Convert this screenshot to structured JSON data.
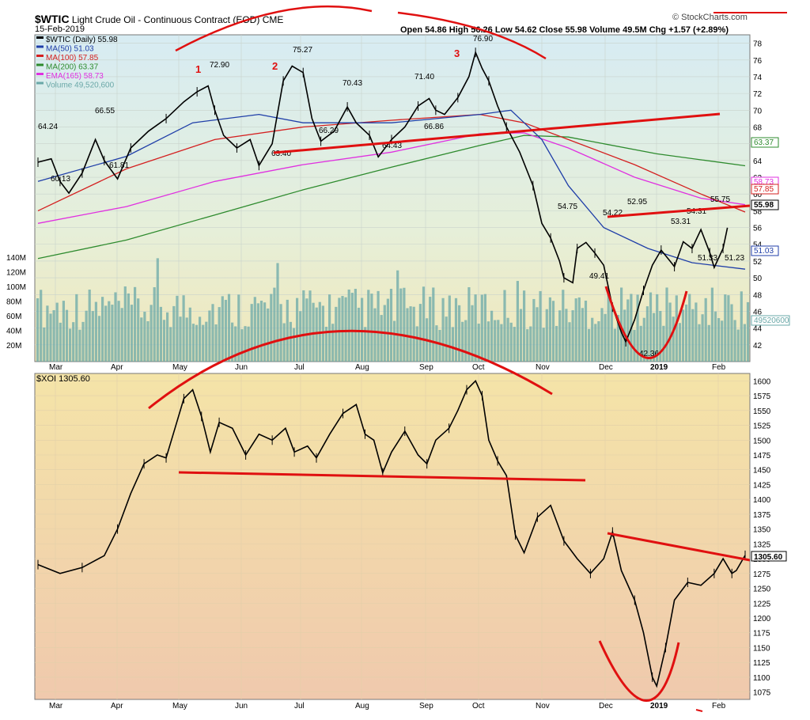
{
  "header": {
    "symbol": "$WTIC",
    "description": "Light Crude Oil - Continuous Contract (EOD)",
    "exchange": "CME",
    "date": "15-Feb-2019",
    "brand": "© StockCharts.com",
    "stats": {
      "open": "Open 54.86",
      "high": "High 56.26",
      "low": "Low 54.62",
      "close": "Close 55.98",
      "volume": "Volume 49.5M",
      "chg": "Chg +1.57 (+2.89%)"
    }
  },
  "colors": {
    "ma50": "#1f3ea8",
    "ma100": "#d42020",
    "ma200": "#2e8b2e",
    "ema165": "#e030e0",
    "volume": "#6aa8a8",
    "annotation": "#e01010",
    "candle": "#000000"
  },
  "chart_data": [
    {
      "type": "line",
      "title": "$WTIC (Daily) 55.98",
      "x_labels": [
        "Mar",
        "Apr",
        "May",
        "Jun",
        "Jul",
        "Aug",
        "Sep",
        "Oct",
        "Nov",
        "Dec",
        "2019",
        "Feb"
      ],
      "ylim": [
        40,
        79
      ],
      "y_ticks": [
        42,
        44,
        46,
        48,
        50,
        52,
        54,
        56,
        58,
        60,
        62,
        64,
        66,
        68,
        70,
        72,
        74,
        76,
        78
      ],
      "volume_ticks": [
        "140M",
        "120M",
        "100M",
        "80M",
        "60M",
        "40M",
        "20M"
      ],
      "legend": [
        {
          "label": "$WTIC (Daily) 55.98",
          "color": "#000000"
        },
        {
          "label": "MA(50) 51.03",
          "color": "#1f3ea8"
        },
        {
          "label": "MA(100) 57.85",
          "color": "#d42020"
        },
        {
          "label": "MA(200) 63.37",
          "color": "#2e8b2e"
        },
        {
          "label": "EMA(165) 58.73",
          "color": "#e030e0"
        },
        {
          "label": "Volume 49,520,600",
          "color": "#6aa8a8"
        }
      ],
      "price_path": [
        [
          0,
          63.8
        ],
        [
          0.03,
          64.2
        ],
        [
          0.05,
          61.5
        ],
        [
          0.07,
          60.1
        ],
        [
          0.1,
          62.5
        ],
        [
          0.13,
          66.5
        ],
        [
          0.15,
          64.0
        ],
        [
          0.18,
          61.8
        ],
        [
          0.21,
          65.5
        ],
        [
          0.25,
          67.5
        ],
        [
          0.29,
          69.0
        ],
        [
          0.33,
          71.0
        ],
        [
          0.36,
          72.2
        ],
        [
          0.385,
          72.9
        ],
        [
          0.4,
          70.0
        ],
        [
          0.42,
          67.0
        ],
        [
          0.45,
          65.5
        ],
        [
          0.48,
          66.5
        ],
        [
          0.5,
          63.4
        ],
        [
          0.53,
          66.0
        ],
        [
          0.555,
          73.5
        ],
        [
          0.575,
          75.27
        ],
        [
          0.6,
          74.5
        ],
        [
          0.62,
          69.0
        ],
        [
          0.64,
          66.3
        ],
        [
          0.67,
          67.5
        ],
        [
          0.7,
          70.4
        ],
        [
          0.72,
          68.5
        ],
        [
          0.75,
          67.0
        ],
        [
          0.77,
          64.43
        ],
        [
          0.8,
          66.5
        ],
        [
          0.83,
          68.0
        ],
        [
          0.86,
          70.5
        ],
        [
          0.885,
          71.4
        ],
        [
          0.9,
          70.0
        ],
        [
          0.92,
          69.5
        ],
        [
          0.95,
          71.5
        ],
        [
          0.975,
          74.0
        ],
        [
          0.99,
          76.9
        ],
        [
          1.005,
          75.0
        ],
        [
          1.02,
          73.5
        ],
        [
          1.04,
          70.5
        ],
        [
          1.06,
          68.0
        ],
        [
          1.09,
          65.0
        ],
        [
          1.12,
          61.0
        ],
        [
          1.14,
          56.5
        ],
        [
          1.16,
          54.75
        ],
        [
          1.18,
          52.0
        ],
        [
          1.19,
          50.0
        ],
        [
          1.21,
          49.41
        ],
        [
          1.22,
          53.5
        ],
        [
          1.24,
          54.22
        ],
        [
          1.26,
          52.95
        ],
        [
          1.28,
          51.5
        ],
        [
          1.3,
          46.5
        ],
        [
          1.32,
          43.5
        ],
        [
          1.33,
          42.36
        ],
        [
          1.35,
          45.0
        ],
        [
          1.37,
          48.5
        ],
        [
          1.39,
          51.5
        ],
        [
          1.41,
          53.31
        ],
        [
          1.43,
          52.0
        ],
        [
          1.44,
          51.33
        ],
        [
          1.46,
          54.31
        ],
        [
          1.48,
          53.5
        ],
        [
          1.5,
          55.75
        ],
        [
          1.52,
          53.0
        ],
        [
          1.53,
          51.23
        ],
        [
          1.55,
          53.5
        ],
        [
          1.56,
          55.98
        ]
      ],
      "annotations": [
        "1",
        "2",
        "3"
      ],
      "price_labels": [
        "64.24",
        "60.13",
        "66.55",
        "61.81",
        "72.90",
        "75.27",
        "63.40",
        "66.29",
        "70.43",
        "64.43",
        "71.40",
        "66.86",
        "76.90",
        "54.75",
        "49.41",
        "54.22",
        "52.95",
        "42.36",
        "53.31",
        "54.31",
        "55.75",
        "51.33",
        "51.23"
      ],
      "right_tags": [
        {
          "label": "63.37",
          "color": "#2e8b2e"
        },
        {
          "label": "58.73",
          "color": "#e030e0"
        },
        {
          "label": "57.85",
          "color": "#d42020"
        },
        {
          "label": "55.98",
          "color": "#000000"
        },
        {
          "label": "51.03",
          "color": "#1f3ea8"
        },
        {
          "label": "49520600",
          "color": "#6aa8a8"
        }
      ]
    },
    {
      "type": "line",
      "title": "$XOI 1305.60",
      "x_labels": [
        "Mar",
        "Apr",
        "May",
        "Jun",
        "Jul",
        "Aug",
        "Sep",
        "Oct",
        "Nov",
        "Dec",
        "2019",
        "Feb"
      ],
      "ylim": [
        1062.5,
        1612.5
      ],
      "y_ticks": [
        1075,
        1100,
        1125,
        1150,
        1175,
        1200,
        1225,
        1250,
        1275,
        1300,
        1325,
        1350,
        1375,
        1400,
        1425,
        1450,
        1475,
        1500,
        1525,
        1550,
        1575,
        1600
      ],
      "price_path": [
        [
          0,
          1290
        ],
        [
          0.05,
          1275
        ],
        [
          0.1,
          1285
        ],
        [
          0.15,
          1305
        ],
        [
          0.18,
          1350
        ],
        [
          0.21,
          1410
        ],
        [
          0.24,
          1460
        ],
        [
          0.27,
          1475
        ],
        [
          0.29,
          1470
        ],
        [
          0.31,
          1520
        ],
        [
          0.33,
          1570
        ],
        [
          0.35,
          1585
        ],
        [
          0.37,
          1540
        ],
        [
          0.39,
          1480
        ],
        [
          0.41,
          1530
        ],
        [
          0.44,
          1520
        ],
        [
          0.47,
          1475
        ],
        [
          0.5,
          1510
        ],
        [
          0.53,
          1500
        ],
        [
          0.56,
          1520
        ],
        [
          0.58,
          1480
        ],
        [
          0.61,
          1490
        ],
        [
          0.63,
          1470
        ],
        [
          0.66,
          1510
        ],
        [
          0.69,
          1545
        ],
        [
          0.72,
          1560
        ],
        [
          0.74,
          1510
        ],
        [
          0.76,
          1500
        ],
        [
          0.78,
          1445
        ],
        [
          0.8,
          1480
        ],
        [
          0.83,
          1515
        ],
        [
          0.86,
          1475
        ],
        [
          0.88,
          1460
        ],
        [
          0.9,
          1500
        ],
        [
          0.93,
          1520
        ],
        [
          0.95,
          1550
        ],
        [
          0.97,
          1585
        ],
        [
          0.99,
          1600
        ],
        [
          1.005,
          1575
        ],
        [
          1.02,
          1500
        ],
        [
          1.04,
          1465
        ],
        [
          1.06,
          1440
        ],
        [
          1.08,
          1340
        ],
        [
          1.1,
          1310
        ],
        [
          1.13,
          1370
        ],
        [
          1.16,
          1390
        ],
        [
          1.19,
          1330
        ],
        [
          1.22,
          1300
        ],
        [
          1.25,
          1275
        ],
        [
          1.28,
          1300
        ],
        [
          1.3,
          1345
        ],
        [
          1.32,
          1280
        ],
        [
          1.35,
          1230
        ],
        [
          1.37,
          1175
        ],
        [
          1.39,
          1100
        ],
        [
          1.4,
          1085
        ],
        [
          1.42,
          1150
        ],
        [
          1.44,
          1230
        ],
        [
          1.47,
          1260
        ],
        [
          1.5,
          1255
        ],
        [
          1.53,
          1275
        ],
        [
          1.55,
          1300
        ],
        [
          1.57,
          1275
        ],
        [
          1.58,
          1280
        ],
        [
          1.6,
          1305.6
        ]
      ],
      "right_tags": [
        {
          "label": "1305.60",
          "color": "#000000"
        }
      ]
    }
  ]
}
